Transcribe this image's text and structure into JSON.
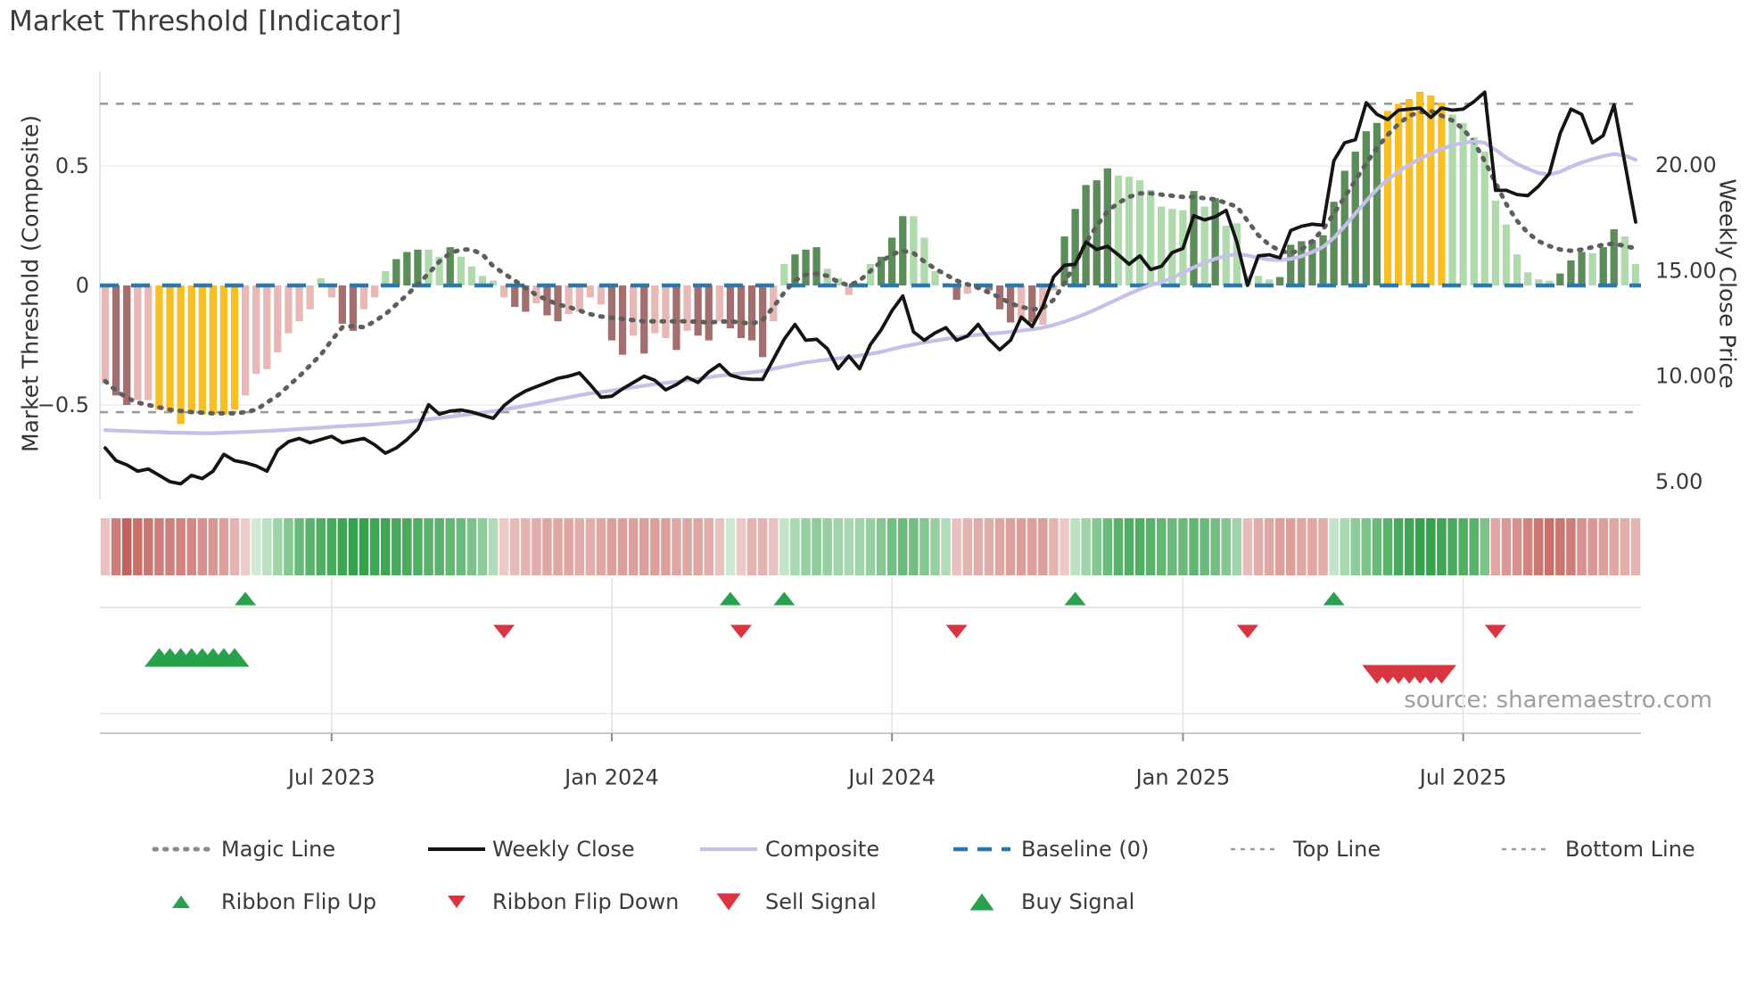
{
  "title": "Market Threshold [Indicator]",
  "source_text": "source: sharemaestro.com",
  "left_axis": {
    "label": "Market Threshold (Composite)",
    "ticks": [
      {
        "value": 0.5,
        "label": "0.5"
      },
      {
        "value": 0.0,
        "label": "0"
      },
      {
        "value": -0.5,
        "label": "−0.5"
      }
    ]
  },
  "right_axis": {
    "label": "Weekly Close Price",
    "ticks": [
      {
        "value": 20.0,
        "label": "20.00"
      },
      {
        "value": 15.0,
        "label": "15.00"
      },
      {
        "value": 10.0,
        "label": "10.00"
      },
      {
        "value": 5.0,
        "label": "5.00"
      }
    ]
  },
  "x_axis": {
    "ticks": [
      {
        "week": 21,
        "label": "Jul 2023"
      },
      {
        "week": 47,
        "label": "Jan 2024"
      },
      {
        "week": 73,
        "label": "Jul 2024"
      },
      {
        "week": 100,
        "label": "Jan 2025"
      },
      {
        "week": 126,
        "label": "Jul 2025"
      }
    ]
  },
  "reference_lines": {
    "top_line_value": 0.76,
    "bottom_line_value": -0.53,
    "baseline_value": 0
  },
  "colors": {
    "bar_light_red": "#E7B8B6",
    "bar_dark_red": "#A36F6E",
    "bar_light_green": "#B0DAAE",
    "bar_dark_green": "#5C8C59",
    "bar_signal_yellow": "#F8BE26",
    "ribbon_red_weak": "#F6E4E3",
    "ribbon_red_strong": "#C25A55",
    "ribbon_green_weak": "#E7F4E8",
    "ribbon_green_strong": "#35A24C",
    "baseline_blue": "#2A7AB0",
    "magic_line_gray": "#5E5E5E",
    "top_bottom_gray": "#9C9C9C",
    "weekly_close_black": "#141414",
    "composite_lavender": "#C5BFE9",
    "signal_green": "#28A04C",
    "signal_red": "#D93440",
    "grid_light": "#EAEDF3",
    "axis_line": "#C9C9C9",
    "panel_line": "#DEDEDE",
    "text_dark": "#3a3a3a"
  },
  "legend": {
    "rows": [
      [
        {
          "label": "Magic Line",
          "marker": "dotted-gray"
        },
        {
          "label": "Weekly Close",
          "marker": "solid-black"
        },
        {
          "label": "Composite",
          "marker": "solid-lavender"
        },
        {
          "label": "Baseline (0)",
          "marker": "dashed-blue"
        },
        {
          "label": "Top Line",
          "marker": "dashed-gray"
        },
        {
          "label": "Bottom Line",
          "marker": "dashed-gray"
        }
      ],
      [
        {
          "label": "Ribbon Flip Up",
          "marker": "triangle-up-small-green"
        },
        {
          "label": "Ribbon Flip Down",
          "marker": "triangle-down-small-red"
        },
        {
          "label": "Sell Signal",
          "marker": "triangle-down-red"
        },
        {
          "label": "Buy Signal",
          "marker": "triangle-up-green"
        }
      ]
    ]
  },
  "chart_data": {
    "type": "mixed",
    "x_unit": "week",
    "n_weeks": 143,
    "ylim_left": [
      -0.9,
      0.9
    ],
    "ylim_right": [
      4.2,
      24.4
    ],
    "grid": "horizontal-only",
    "legend_position": "bottom",
    "series": [
      {
        "name": "Market Threshold",
        "type": "bar",
        "axis": "left",
        "values": [
          -0.41,
          -0.46,
          -0.5,
          -0.48,
          -0.48,
          -0.52,
          -0.53,
          -0.58,
          -0.53,
          -0.54,
          -0.54,
          -0.54,
          -0.52,
          -0.46,
          -0.37,
          -0.35,
          -0.28,
          -0.2,
          -0.15,
          -0.1,
          0.03,
          -0.05,
          -0.16,
          -0.19,
          -0.1,
          -0.05,
          0.06,
          0.11,
          0.14,
          0.15,
          0.15,
          0.12,
          0.16,
          0.12,
          0.08,
          0.04,
          0.02,
          -0.05,
          -0.09,
          -0.11,
          -0.075,
          -0.125,
          -0.15,
          -0.12,
          -0.11,
          -0.05,
          -0.08,
          -0.23,
          -0.29,
          -0.21,
          -0.285,
          -0.2,
          -0.22,
          -0.27,
          -0.19,
          -0.21,
          -0.23,
          -0.15,
          -0.18,
          -0.22,
          -0.23,
          -0.3,
          -0.15,
          0.09,
          0.13,
          0.15,
          0.16,
          0.07,
          0.03,
          -0.04,
          0.01,
          0.09,
          0.12,
          0.2,
          0.29,
          0.29,
          0.2,
          0.06,
          0.01,
          -0.06,
          -0.035,
          -0.01,
          -0.02,
          -0.1,
          -0.155,
          -0.14,
          -0.155,
          -0.165,
          -0.02,
          0.205,
          0.32,
          0.42,
          0.44,
          0.49,
          0.46,
          0.455,
          0.44,
          0.4,
          0.33,
          0.32,
          0.315,
          0.395,
          0.33,
          0.365,
          0.25,
          0.26,
          0.04,
          0.04,
          0.025,
          0.035,
          0.17,
          0.185,
          0.19,
          0.21,
          0.35,
          0.48,
          0.56,
          0.645,
          0.68,
          0.73,
          0.76,
          0.78,
          0.81,
          0.795,
          0.765,
          0.715,
          0.68,
          0.62,
          0.56,
          0.355,
          0.255,
          0.13,
          0.055,
          0.025,
          0.02,
          0.05,
          0.105,
          0.14,
          0.135,
          0.16,
          0.235,
          0.205,
          0.09
        ],
        "bar_classes": "pmmppyyyyyyyypppppppgpmmppgGGGggGggggpmmpmmppppmmpmppmpmmpmmmmpgGGGggpggGGGggggmppmmmpmppGGGGGgggggggGgGgggggGGGGGGGGGGyyyyyyggggggggggGGGgGGgg",
        "class_palette": {
          "p": "bar_light_red",
          "m": "bar_dark_red",
          "g": "bar_light_green",
          "G": "bar_dark_green",
          "y": "bar_signal_yellow"
        }
      },
      {
        "name": "Magic Line",
        "type": "line",
        "style": "dotted",
        "axis": "left",
        "values": [
          -0.4,
          -0.44,
          -0.47,
          -0.49,
          -0.5,
          -0.51,
          -0.52,
          -0.525,
          -0.53,
          -0.532,
          -0.535,
          -0.535,
          -0.535,
          -0.53,
          -0.52,
          -0.49,
          -0.46,
          -0.42,
          -0.38,
          -0.335,
          -0.29,
          -0.23,
          -0.175,
          -0.17,
          -0.175,
          -0.15,
          -0.12,
          -0.08,
          -0.04,
          0.005,
          0.05,
          0.1,
          0.135,
          0.15,
          0.15,
          0.13,
          0.08,
          0.05,
          0.02,
          -0.01,
          -0.04,
          -0.06,
          -0.08,
          -0.09,
          -0.105,
          -0.12,
          -0.13,
          -0.135,
          -0.14,
          -0.145,
          -0.15,
          -0.15,
          -0.15,
          -0.15,
          -0.15,
          -0.152,
          -0.155,
          -0.152,
          -0.15,
          -0.155,
          -0.16,
          -0.145,
          -0.09,
          -0.03,
          0.02,
          0.045,
          0.05,
          0.04,
          0.015,
          0.0,
          0.02,
          0.06,
          0.1,
          0.13,
          0.145,
          0.135,
          0.1,
          0.07,
          0.045,
          0.02,
          0.005,
          -0.01,
          -0.03,
          -0.05,
          -0.075,
          -0.09,
          -0.1,
          -0.095,
          -0.06,
          0.01,
          0.09,
          0.18,
          0.25,
          0.31,
          0.345,
          0.37,
          0.385,
          0.385,
          0.38,
          0.375,
          0.37,
          0.37,
          0.365,
          0.36,
          0.345,
          0.33,
          0.27,
          0.21,
          0.17,
          0.145,
          0.135,
          0.15,
          0.185,
          0.235,
          0.3,
          0.37,
          0.44,
          0.51,
          0.575,
          0.63,
          0.675,
          0.71,
          0.725,
          0.73,
          0.71,
          0.69,
          0.655,
          0.6,
          0.52,
          0.43,
          0.34,
          0.27,
          0.22,
          0.185,
          0.165,
          0.15,
          0.145,
          0.15,
          0.16,
          0.17,
          0.175,
          0.165,
          0.155
        ]
      },
      {
        "name": "Weekly Close",
        "type": "line",
        "axis": "right",
        "values": [
          6.6,
          6.0,
          5.8,
          5.5,
          5.6,
          5.3,
          5.0,
          4.9,
          5.3,
          5.15,
          5.5,
          6.3,
          6.0,
          5.9,
          5.75,
          5.5,
          6.5,
          6.9,
          7.05,
          6.85,
          7.0,
          7.15,
          6.85,
          6.95,
          7.05,
          6.75,
          6.35,
          6.6,
          7.0,
          7.5,
          8.65,
          8.2,
          8.35,
          8.4,
          8.3,
          8.15,
          8.0,
          8.6,
          9.0,
          9.3,
          9.5,
          9.7,
          9.9,
          10.0,
          10.15,
          9.6,
          9.0,
          9.05,
          9.4,
          9.7,
          10.0,
          9.8,
          9.35,
          9.6,
          9.95,
          9.7,
          10.2,
          10.55,
          10.05,
          9.9,
          9.85,
          9.85,
          10.8,
          11.75,
          12.45,
          11.7,
          11.75,
          11.3,
          10.35,
          10.95,
          10.35,
          11.5,
          12.2,
          13.1,
          13.8,
          12.1,
          11.7,
          12.05,
          12.3,
          11.7,
          11.9,
          12.45,
          11.75,
          11.25,
          11.7,
          12.8,
          12.35,
          13.3,
          14.7,
          15.25,
          15.3,
          16.35,
          16.0,
          16.15,
          15.75,
          15.3,
          15.7,
          15.05,
          15.2,
          15.85,
          16.05,
          17.6,
          17.4,
          17.55,
          17.85,
          16.35,
          14.3,
          15.7,
          15.75,
          15.6,
          16.9,
          17.1,
          17.2,
          17.15,
          20.2,
          21.05,
          21.2,
          22.95,
          22.4,
          22.15,
          22.6,
          22.65,
          22.7,
          22.25,
          22.7,
          22.6,
          22.65,
          23.0,
          23.45,
          18.8,
          18.8,
          18.6,
          18.55,
          19.0,
          19.6,
          21.5,
          22.65,
          22.4,
          21.05,
          21.4,
          22.85,
          20.1,
          17.3
        ]
      },
      {
        "name": "Composite",
        "type": "line",
        "axis": "right",
        "values": [
          7.45,
          7.42,
          7.4,
          7.38,
          7.36,
          7.35,
          7.33,
          7.32,
          7.31,
          7.3,
          7.3,
          7.32,
          7.34,
          7.36,
          7.38,
          7.4,
          7.43,
          7.46,
          7.5,
          7.53,
          7.56,
          7.6,
          7.63,
          7.66,
          7.69,
          7.72,
          7.76,
          7.8,
          7.85,
          7.9,
          7.96,
          8.02,
          8.08,
          8.14,
          8.2,
          8.27,
          8.34,
          8.42,
          8.51,
          8.6,
          8.7,
          8.8,
          8.9,
          9.0,
          9.1,
          9.18,
          9.25,
          9.32,
          9.4,
          9.47,
          9.55,
          9.62,
          9.68,
          9.74,
          9.8,
          9.87,
          9.95,
          10.02,
          10.08,
          10.13,
          10.18,
          10.25,
          10.35,
          10.45,
          10.55,
          10.65,
          10.72,
          10.78,
          10.84,
          10.9,
          10.97,
          11.05,
          11.15,
          11.28,
          11.4,
          11.5,
          11.6,
          11.68,
          11.76,
          11.84,
          11.9,
          11.96,
          12.01,
          12.05,
          12.1,
          12.16,
          12.22,
          12.3,
          12.42,
          12.58,
          12.76,
          12.96,
          13.18,
          13.42,
          13.66,
          13.9,
          14.12,
          14.32,
          14.45,
          14.65,
          14.9,
          15.15,
          15.38,
          15.56,
          15.7,
          15.78,
          15.72,
          15.6,
          15.52,
          15.5,
          15.55,
          15.68,
          15.88,
          16.12,
          16.55,
          17.1,
          17.7,
          18.3,
          18.85,
          19.3,
          19.7,
          20.02,
          20.3,
          20.55,
          20.76,
          20.94,
          21.05,
          21.12,
          21.05,
          20.72,
          20.35,
          20.05,
          19.82,
          19.62,
          19.55,
          19.68,
          19.92,
          20.12,
          20.28,
          20.42,
          20.52,
          20.45,
          20.25
        ]
      },
      {
        "name": "Ribbon",
        "type": "heatmap",
        "values": [
          -0.25,
          -0.75,
          -0.95,
          -0.85,
          -0.8,
          -0.75,
          -0.72,
          -0.7,
          -0.68,
          -0.6,
          -0.55,
          -0.5,
          -0.35,
          -0.18,
          0.12,
          0.25,
          0.4,
          0.55,
          0.7,
          0.8,
          0.85,
          0.9,
          0.95,
          1.0,
          1.0,
          0.95,
          0.95,
          0.9,
          0.9,
          0.85,
          0.8,
          0.8,
          0.75,
          0.7,
          0.6,
          0.5,
          0.3,
          -0.2,
          -0.3,
          -0.35,
          -0.4,
          -0.45,
          -0.45,
          -0.45,
          -0.4,
          -0.4,
          -0.45,
          -0.5,
          -0.5,
          -0.5,
          -0.5,
          -0.5,
          -0.5,
          -0.45,
          -0.45,
          -0.45,
          -0.4,
          -0.25,
          0.15,
          -0.2,
          -0.35,
          -0.35,
          -0.25,
          0.2,
          0.35,
          0.45,
          0.5,
          0.45,
          0.4,
          0.35,
          0.4,
          0.45,
          0.55,
          0.65,
          0.7,
          0.65,
          0.55,
          0.45,
          0.3,
          -0.25,
          -0.35,
          -0.4,
          -0.4,
          -0.45,
          -0.5,
          -0.5,
          -0.5,
          -0.5,
          -0.35,
          -0.2,
          0.25,
          0.4,
          0.55,
          0.7,
          0.8,
          0.85,
          0.85,
          0.8,
          0.75,
          0.7,
          0.7,
          0.75,
          0.7,
          0.65,
          0.55,
          0.4,
          -0.3,
          -0.4,
          -0.45,
          -0.5,
          -0.5,
          -0.45,
          -0.45,
          -0.4,
          0.2,
          0.35,
          0.5,
          0.6,
          0.7,
          0.8,
          0.9,
          0.95,
          1.0,
          1.0,
          0.95,
          0.9,
          0.85,
          0.8,
          0.6,
          -0.45,
          -0.55,
          -0.6,
          -0.7,
          -0.8,
          -0.85,
          -0.8,
          -0.75,
          -0.6,
          -0.55,
          -0.5,
          -0.45,
          -0.4,
          -0.35
        ]
      }
    ],
    "signals": {
      "ribbon_flip_up_weeks": [
        13,
        58,
        63,
        90,
        114
      ],
      "ribbon_flip_down_weeks": [
        37,
        59,
        79,
        106,
        129
      ],
      "buy_signal_weeks": [
        5,
        6,
        7,
        8,
        9,
        10,
        11,
        12
      ],
      "sell_signal_weeks": [
        118,
        119,
        120,
        121,
        122,
        123,
        124
      ]
    }
  }
}
